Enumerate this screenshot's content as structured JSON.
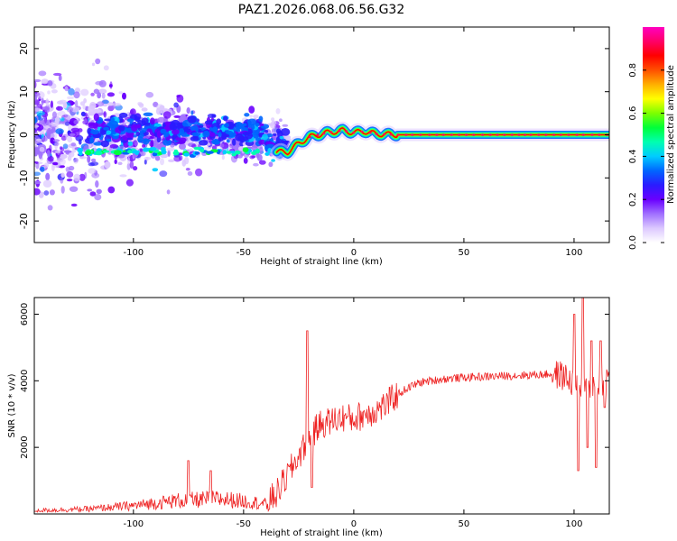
{
  "figure_title": "PAZ1.2026.068.06.56.G32",
  "colors": {
    "rainbow": [
      "#ffffff",
      "#dcc8ff",
      "#a070ff",
      "#6a00ff",
      "#2a1cff",
      "#0066ff",
      "#00ccff",
      "#00ffb0",
      "#00ff3a",
      "#7cff00",
      "#ffff00",
      "#ffb000",
      "#ff5000",
      "#ff0000",
      "#ff0066",
      "#ff00c0"
    ],
    "snr_line": "#ee2222",
    "axis": "#000000"
  },
  "chart_data": [
    {
      "type": "heatmap",
      "name": "spectrogram",
      "xlabel": "Height of straight line (km)",
      "ylabel": "Frequency (Hz)",
      "xlim": [
        -145,
        116
      ],
      "ylim": [
        -25,
        25
      ],
      "xticks": [
        -100,
        -50,
        0,
        50,
        100
      ],
      "yticks": [
        -20,
        -10,
        0,
        10,
        20
      ],
      "ridge": [
        [
          -30,
          -4
        ],
        [
          -25,
          -2
        ],
        [
          -20,
          -0.5
        ],
        [
          -12,
          0.5
        ],
        [
          -5,
          1
        ],
        [
          0,
          0.5
        ],
        [
          5,
          0.8
        ],
        [
          10,
          0.2
        ],
        [
          20,
          0
        ],
        [
          50,
          0
        ],
        [
          80,
          0
        ],
        [
          100,
          0
        ],
        [
          116,
          0
        ]
      ],
      "colorbar": {
        "label": "Normalized spectral amplitude",
        "range": [
          0,
          1
        ],
        "ticks": [
          "0.0",
          "0.2",
          "0.4",
          "0.6",
          "0.8"
        ]
      }
    },
    {
      "type": "line",
      "name": "snr",
      "xlabel": "Height of straight line (km)",
      "ylabel": "SNR (10 * v/v)",
      "xlim": [
        -145,
        116
      ],
      "ylim": [
        0,
        6500
      ],
      "xticks": [
        -100,
        -50,
        0,
        50,
        100
      ],
      "yticks": [
        2000,
        4000,
        6000
      ],
      "envelope": [
        [
          -145,
          100
        ],
        [
          -120,
          150
        ],
        [
          -100,
          250
        ],
        [
          -80,
          400
        ],
        [
          -60,
          450
        ],
        [
          -45,
          350
        ],
        [
          -40,
          300
        ],
        [
          -35,
          600
        ],
        [
          -28,
          1400
        ],
        [
          -20,
          2300
        ],
        [
          -15,
          2700
        ],
        [
          -10,
          2800
        ],
        [
          -5,
          2900
        ],
        [
          0,
          2850
        ],
        [
          5,
          3000
        ],
        [
          10,
          3100
        ],
        [
          15,
          3300
        ],
        [
          20,
          3600
        ],
        [
          25,
          3800
        ],
        [
          30,
          3950
        ],
        [
          40,
          4050
        ],
        [
          50,
          4100
        ],
        [
          70,
          4150
        ],
        [
          90,
          4200
        ],
        [
          95,
          4150
        ],
        [
          100,
          3900
        ],
        [
          105,
          3700
        ],
        [
          110,
          3900
        ],
        [
          116,
          4050
        ]
      ],
      "spikes": [
        [
          -75,
          1600
        ],
        [
          -65,
          1300
        ],
        [
          -21,
          5500
        ],
        [
          -19,
          800
        ],
        [
          100,
          6000
        ],
        [
          102,
          1300
        ],
        [
          104,
          6500
        ],
        [
          106,
          2000
        ],
        [
          108,
          5200
        ],
        [
          110,
          1400
        ],
        [
          112,
          5200
        ],
        [
          114,
          3200
        ]
      ]
    }
  ]
}
